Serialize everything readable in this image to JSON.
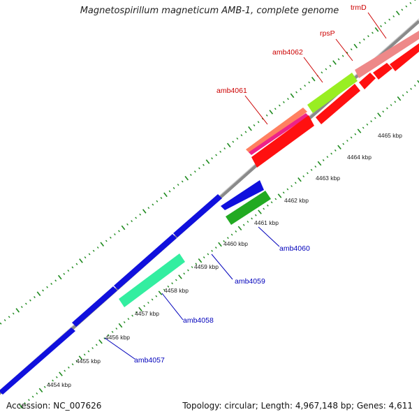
{
  "title": "Magnetospirillum magneticum AMB-1, complete genome",
  "footer": {
    "accession": "Accession: NC_007626",
    "summary": "Topology: circular; Length: 4,967,148 bp; Genes: 4,611"
  },
  "colors": {
    "backbone": "#8a8a8a",
    "tick": "#1e8a1e",
    "forward_label": "#cc0000",
    "reverse_label": "#0000bb",
    "kbp_label": "#222222"
  },
  "scale_labels": [
    "4454 kbp",
    "4455 kbp",
    "4456 kbp",
    "4457 kbp",
    "4458 kbp",
    "4459 kbp",
    "4460 kbp",
    "4461 kbp",
    "4462 kbp",
    "4463 kbp",
    "4464 kbp",
    "4465 kbp"
  ],
  "genes": [
    {
      "name": "amb4057",
      "strand": "reverse",
      "color": "#1010dd"
    },
    {
      "name": "amb4058",
      "strand": "reverse",
      "color": "#33eea0"
    },
    {
      "name": "amb4059",
      "strand": "reverse",
      "color": "#1010dd"
    },
    {
      "name": "amb4060",
      "strand": "reverse",
      "color": "#22aa22"
    },
    {
      "name": "amb4061",
      "strand": "forward",
      "color": "#ff8060"
    },
    {
      "name": "amb4062",
      "strand": "forward",
      "color": "#99ee22"
    },
    {
      "name": "rpsP",
      "strand": "forward",
      "color": "#ee8888"
    },
    {
      "name": "trmD",
      "strand": "forward",
      "color": "#ee8888"
    }
  ]
}
